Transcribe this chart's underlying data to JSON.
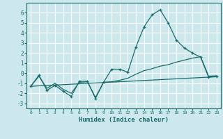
{
  "xlabel": "Humidex (Indice chaleur)",
  "background_color": "#cce8ec",
  "grid_color": "#ffffff",
  "line_color": "#1a6b6b",
  "xlim": [
    -0.5,
    23.5
  ],
  "ylim": [
    -3.5,
    7.0
  ],
  "xticks": [
    0,
    1,
    2,
    3,
    4,
    5,
    6,
    7,
    8,
    9,
    10,
    11,
    12,
    13,
    14,
    15,
    16,
    17,
    18,
    19,
    20,
    21,
    22,
    23
  ],
  "yticks": [
    -3,
    -2,
    -1,
    0,
    1,
    2,
    3,
    4,
    5,
    6
  ],
  "line1_x": [
    0,
    1,
    2,
    3,
    4,
    5,
    6,
    7,
    8,
    9,
    10,
    11,
    12,
    13,
    14,
    15,
    16,
    17,
    18,
    19,
    20,
    21,
    22,
    23
  ],
  "line1_y": [
    -1.3,
    -0.2,
    -1.7,
    -1.2,
    -1.8,
    -2.3,
    -0.8,
    -0.8,
    -2.5,
    -0.9,
    0.4,
    0.4,
    0.1,
    2.6,
    4.6,
    5.8,
    6.3,
    5.0,
    3.3,
    2.5,
    2.0,
    1.6,
    -0.4,
    -0.3
  ],
  "line2_x": [
    0,
    1,
    2,
    3,
    4,
    5,
    6,
    7,
    8,
    9,
    10,
    11,
    12,
    13,
    14,
    15,
    16,
    17,
    18,
    19,
    20,
    21,
    22,
    23
  ],
  "line2_y": [
    -1.3,
    -0.3,
    -1.5,
    -1.0,
    -1.6,
    -2.0,
    -0.9,
    -0.85,
    -2.4,
    -0.9,
    -0.85,
    -0.7,
    -0.5,
    -0.1,
    0.25,
    0.45,
    0.7,
    0.85,
    1.1,
    1.3,
    1.5,
    1.65,
    -0.3,
    -0.25
  ],
  "line3_x": [
    0,
    23
  ],
  "line3_y": [
    -1.3,
    -0.35
  ]
}
